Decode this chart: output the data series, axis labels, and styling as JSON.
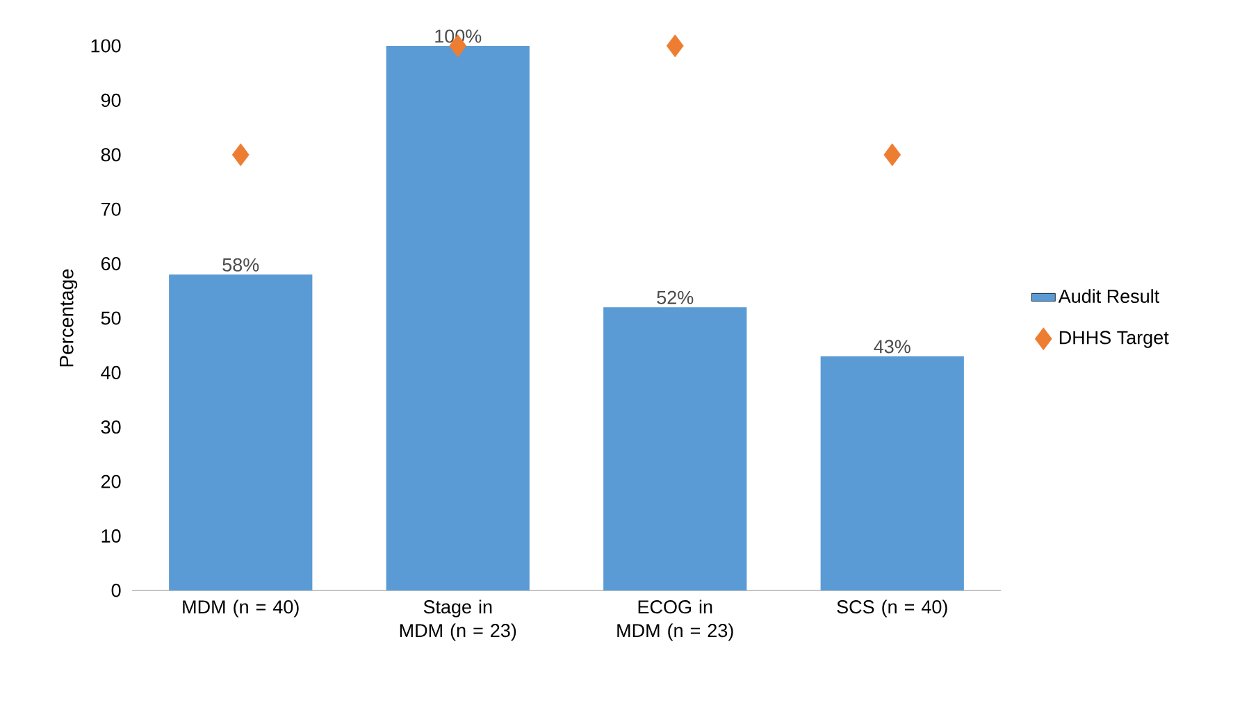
{
  "chart_data": {
    "type": "bar",
    "ylabel": "Percentage",
    "categories": [
      "MDM (n = 40)",
      "Stage in MDM (n = 23)",
      "ECOG in MDM (n = 23)",
      "SCS (n = 40)"
    ],
    "series": [
      {
        "name": "Audit Result",
        "color": "#5b9bd5",
        "values": [
          58,
          100,
          52,
          43
        ],
        "value_labels": [
          "58%",
          "100%",
          "52%",
          "43%"
        ]
      },
      {
        "name": "DHHS Target",
        "type": "scatter",
        "color": "#ed7d31",
        "marker": "diamond",
        "values": [
          80,
          100,
          100,
          80
        ]
      }
    ],
    "ylim": [
      0,
      100
    ],
    "yticks": [
      0,
      10,
      20,
      30,
      40,
      50,
      60,
      70,
      80,
      90,
      100
    ],
    "grid": false,
    "legend": "right"
  }
}
